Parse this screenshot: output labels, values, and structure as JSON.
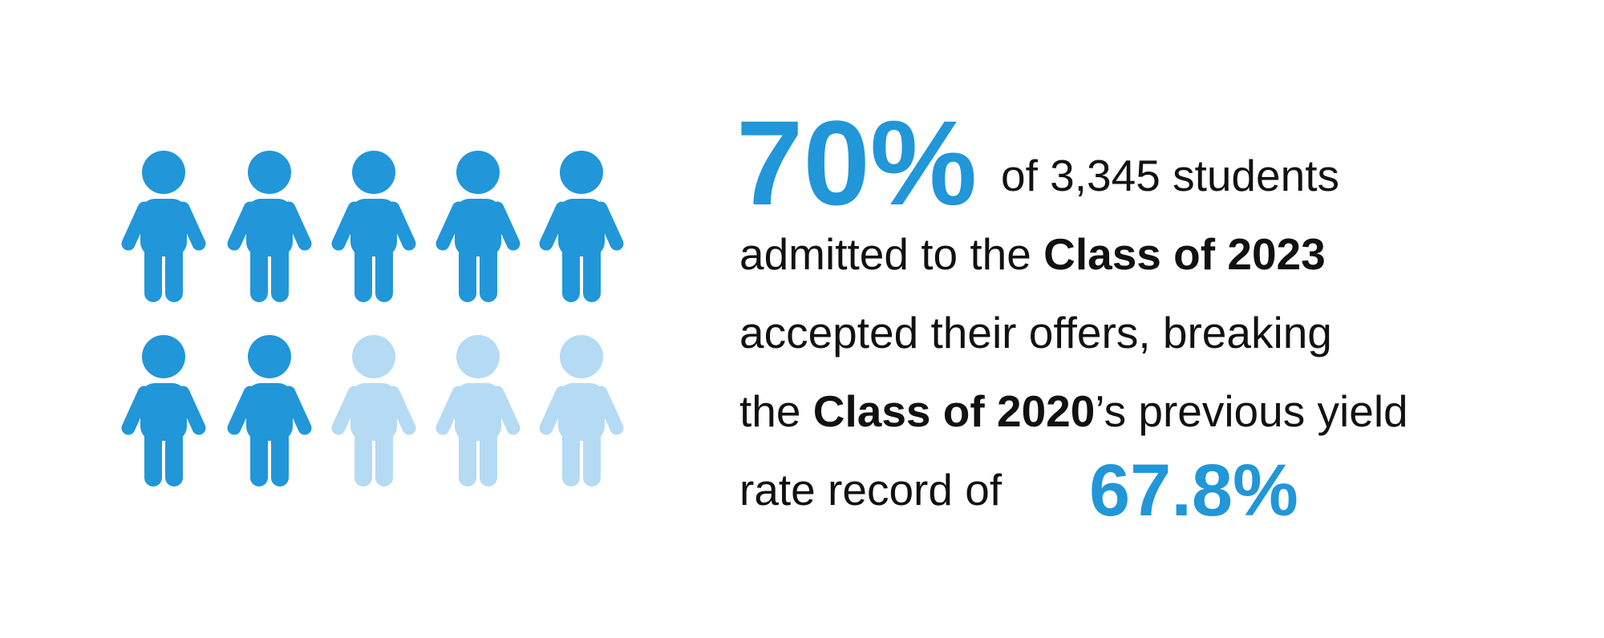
{
  "headline": {
    "value": 70,
    "label": "70%",
    "color": "#2196d8",
    "rest_color": "#b5daf3"
  },
  "text": {
    "line1": "of 3,345 students",
    "line2": [
      "admitted to the ",
      "Class of 2023"
    ],
    "line3": "accepted their offers, breaking",
    "line4": [
      "the ",
      "Class of 2020",
      "’s previous yield"
    ],
    "line5": "rate record of",
    "record": "67.8%"
  }
}
